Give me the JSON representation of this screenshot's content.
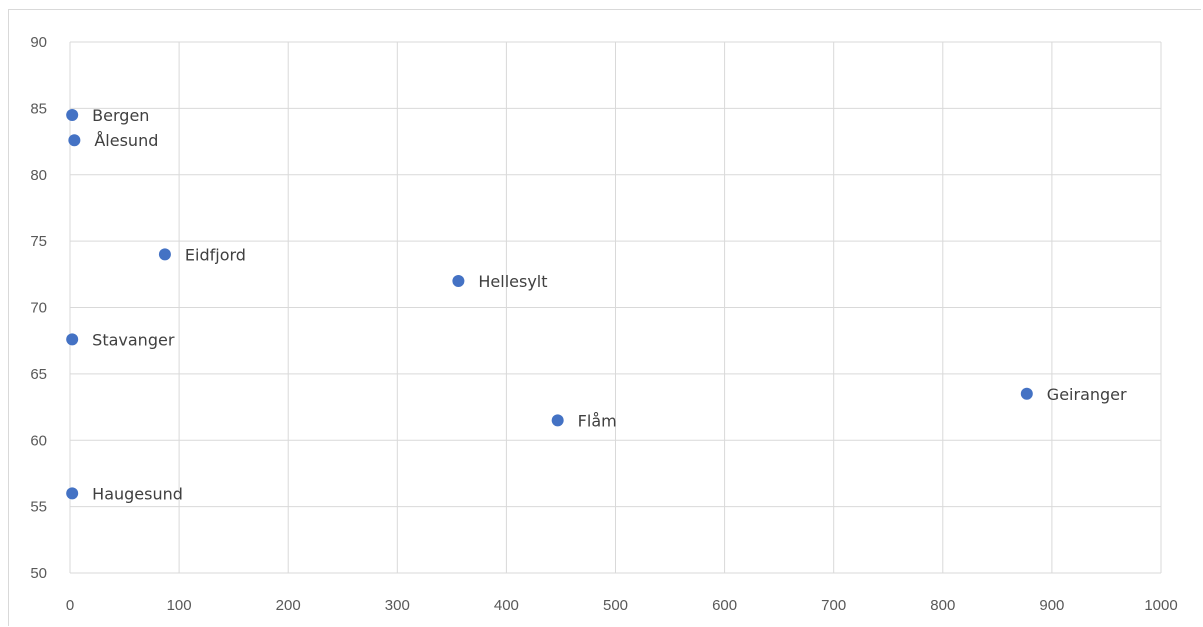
{
  "chart_data": {
    "type": "scatter",
    "title": "",
    "xlabel": "",
    "ylabel": "",
    "xlim": [
      0,
      1000
    ],
    "ylim": [
      50,
      90
    ],
    "x_ticks": [
      "0",
      "100",
      "200",
      "300",
      "400",
      "500",
      "600",
      "700",
      "800",
      "900",
      "1000"
    ],
    "y_ticks": [
      "50",
      "55",
      "60",
      "65",
      "70",
      "75",
      "80",
      "85",
      "90"
    ],
    "grid": true,
    "legend": "none",
    "marker_color": "#4472C4",
    "points": [
      {
        "label": "Bergen",
        "x": 2,
        "y": 84.5
      },
      {
        "label": "Ålesund",
        "x": 4,
        "y": 82.6
      },
      {
        "label": "Eidfjord",
        "x": 87,
        "y": 74
      },
      {
        "label": "Hellesylt",
        "x": 356,
        "y": 72
      },
      {
        "label": "Stavanger",
        "x": 2,
        "y": 67.6
      },
      {
        "label": "Geiranger",
        "x": 877,
        "y": 63.5
      },
      {
        "label": "Flåm",
        "x": 447,
        "y": 61.5
      },
      {
        "label": "Haugesund",
        "x": 2,
        "y": 56
      }
    ]
  }
}
